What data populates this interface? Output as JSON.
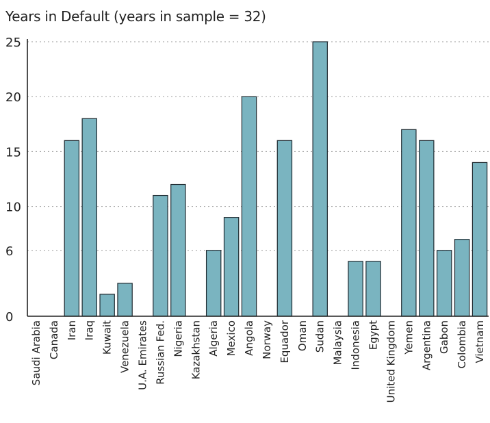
{
  "chart_data": {
    "type": "bar",
    "title": "Years in Default (years in sample = 32)",
    "xlabel": "",
    "ylabel": "",
    "y_ticks": [
      0,
      6,
      10,
      15,
      20,
      25
    ],
    "grid": true,
    "categories": [
      "Saudi Arabia",
      "Canada",
      "Iran",
      "Iraq",
      "Kuwait",
      "Venezuela",
      "U.A. Emirates",
      "Russian Fed.",
      "Nigeria",
      "Kazakhstan",
      "Algeria",
      "Mexico",
      "Angola",
      "Norway",
      "Equador",
      "Oman",
      "Sudan",
      "Malaysia",
      "Indonesia",
      "Egypt",
      "United Kingdom",
      "Yemen",
      "Argentina",
      "Gabon",
      "Colombia",
      "Vietnam"
    ],
    "values": [
      0,
      0,
      16,
      18,
      2,
      3,
      0,
      11,
      12,
      0,
      6,
      9,
      20,
      0,
      16,
      0,
      25,
      0,
      5,
      5,
      0,
      17,
      16,
      6,
      7,
      14
    ],
    "bar_color": "#7ab4c0"
  }
}
